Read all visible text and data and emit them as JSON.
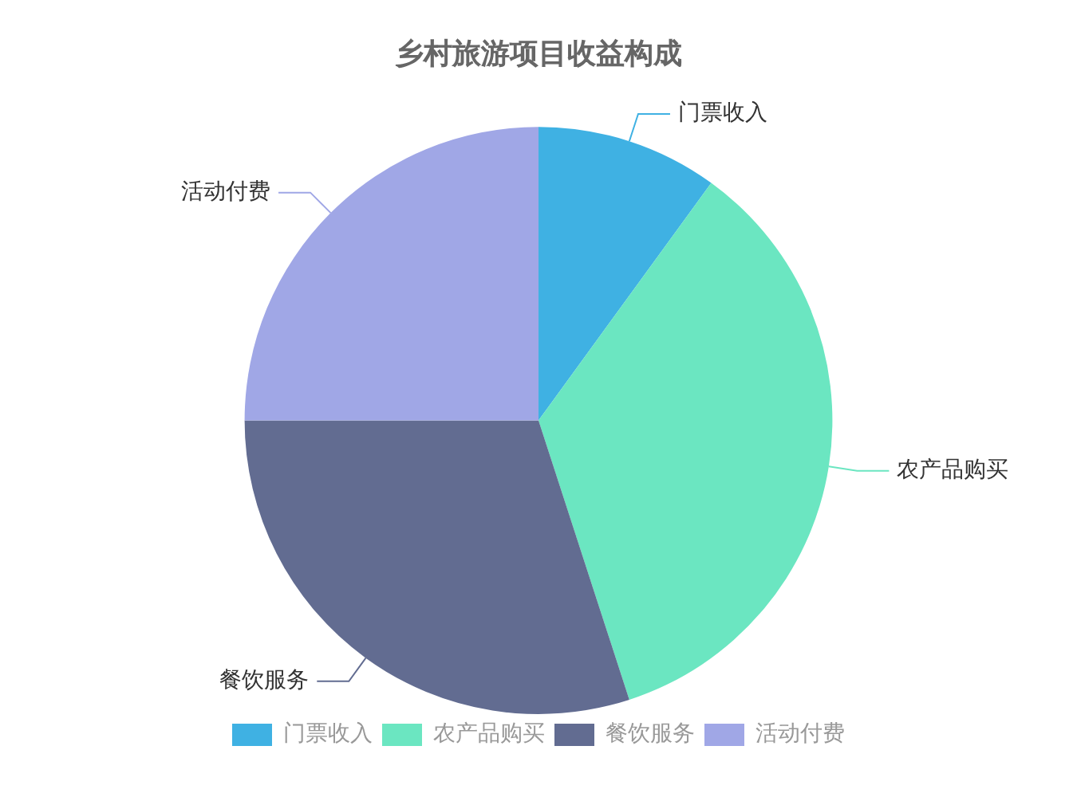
{
  "chart_data": {
    "type": "pie",
    "title": "乡村旅游项目收益构成",
    "categories": [
      "门票收入",
      "农产品购买",
      "餐饮服务",
      "活动付费"
    ],
    "values": [
      10,
      35,
      30,
      25
    ],
    "colors": [
      "#3fb1e3",
      "#6be6c1",
      "#626c91",
      "#a0a7e6"
    ],
    "legend": "bottom"
  }
}
